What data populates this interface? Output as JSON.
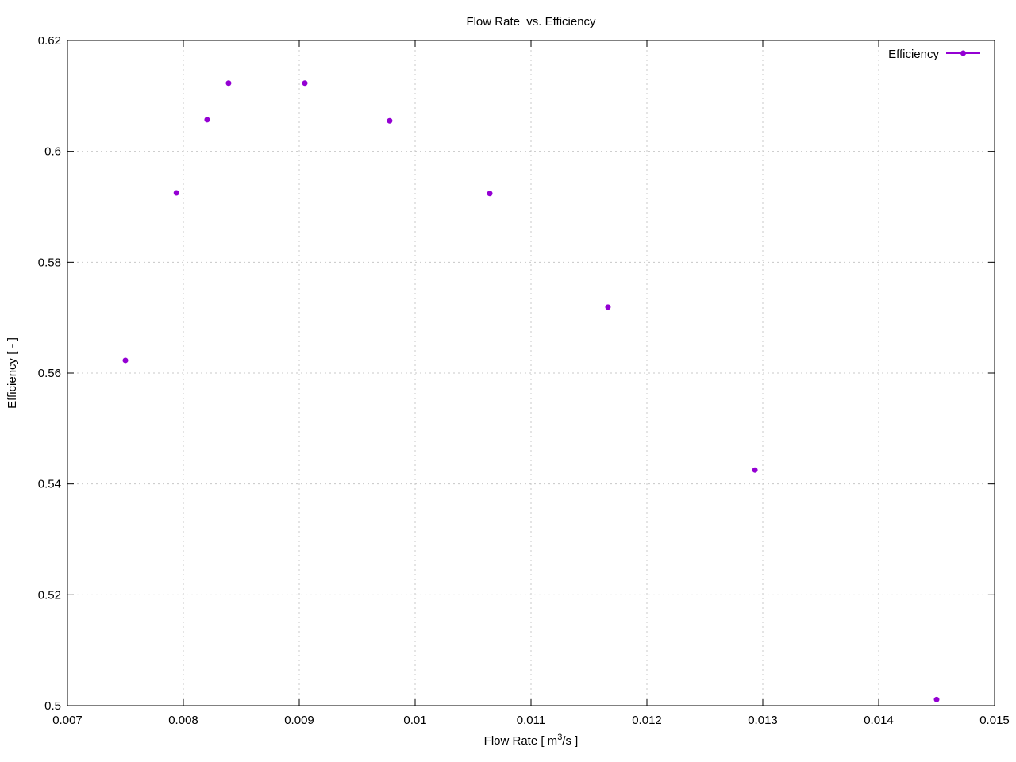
{
  "chart_data": {
    "type": "line",
    "title": "Flow Rate  vs. Efficiency",
    "x_label": [
      "Flow Rate [ m",
      "3",
      "/s ]"
    ],
    "y_label": "Efficiency [ - ]",
    "x": [
      0.0075,
      0.00794,
      0.008205,
      0.00839,
      0.009048,
      0.00978,
      0.010644,
      0.011664,
      0.012932,
      0.0145
    ],
    "series": [
      {
        "name": "Efficiency",
        "color": "#9400d3",
        "values": [
          0.5623,
          0.5925,
          0.6057,
          0.6123,
          0.6123,
          0.6055,
          0.5924,
          0.5719,
          0.5425,
          0.5011
        ]
      }
    ],
    "xlim": [
      0.007,
      0.015
    ],
    "xticks": [
      0.007,
      0.008,
      0.009,
      0.01,
      0.011,
      0.012,
      0.013,
      0.014,
      0.015
    ],
    "ylim": [
      0.5,
      0.62
    ],
    "yticks": [
      0.5,
      0.52,
      0.54,
      0.56,
      0.58,
      0.6,
      0.62
    ],
    "grid": true,
    "legend": "top-right"
  }
}
